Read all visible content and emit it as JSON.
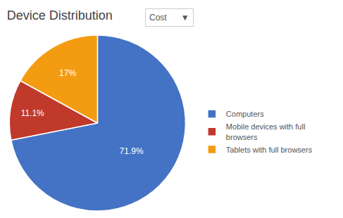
{
  "chart_data": {
    "type": "pie",
    "title": "Device Distribution",
    "categories": [
      "Computers",
      "Mobile devices with full\nbrowsers",
      "Tablets with full browsers"
    ],
    "values": [
      71.9,
      11.1,
      17
    ],
    "value_labels": [
      "71.9%",
      "11.1%",
      "17%"
    ],
    "colors": [
      "#4472C4",
      "#C0392B",
      "#F39C12"
    ],
    "data_labels": true,
    "legend": "right",
    "annotations": [
      "Cost",
      "▼"
    ]
  }
}
